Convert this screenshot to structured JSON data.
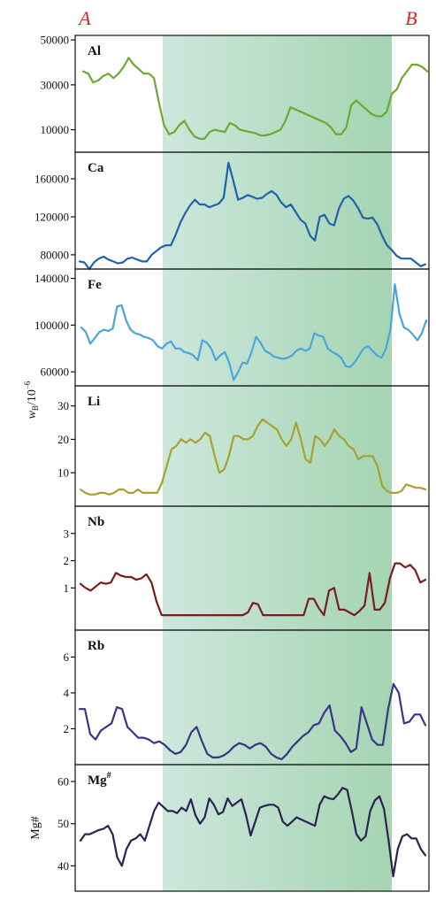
{
  "corner_labels": {
    "left": "A",
    "right": "B"
  },
  "y_axis_title": {
    "main": "w",
    "sub": "B",
    "rest": "/10",
    "sup": "−6"
  },
  "shade_gradient": {
    "start": "#cde7dc",
    "end": "#a4d4b2"
  },
  "chart_data": [
    {
      "type": "line",
      "label": "Al",
      "label_sup": "",
      "color": "#6aaa2e",
      "ylim": [
        0,
        52000
      ],
      "yticks": [
        10000,
        30000,
        50000
      ],
      "ytick_labels": [
        "10000",
        "30000",
        "50000"
      ],
      "ylabel": "",
      "values": [
        36000,
        35000,
        31000,
        32000,
        34000,
        35000,
        33000,
        35000,
        38000,
        42000,
        39000,
        37000,
        35000,
        35000,
        33000,
        22000,
        12000,
        8000,
        9000,
        12000,
        14000,
        10000,
        7000,
        6000,
        6000,
        9000,
        10000,
        9500,
        9000,
        13000,
        12000,
        10000,
        9500,
        9000,
        8500,
        7500,
        7500,
        8000,
        9000,
        10000,
        14000,
        20000,
        19000,
        18000,
        17000,
        16000,
        15000,
        14000,
        13000,
        11000,
        8000,
        8000,
        11000,
        21000,
        23000,
        21000,
        19000,
        17000,
        16000,
        16000,
        18000,
        26000,
        28000,
        33000,
        36000,
        39000,
        39000,
        38000,
        36000
      ]
    },
    {
      "type": "line",
      "label": "Ca",
      "label_sup": "",
      "color": "#1e63ab",
      "ylim": [
        65000,
        188000
      ],
      "yticks": [
        80000,
        120000,
        160000
      ],
      "ytick_labels": [
        "80000",
        "120000",
        "160000"
      ],
      "ylabel": "",
      "values": [
        73000,
        72000,
        65000,
        72000,
        76000,
        78000,
        75000,
        73000,
        71000,
        72000,
        76000,
        77000,
        75000,
        73000,
        73000,
        80000,
        84000,
        88000,
        90000,
        90000,
        101000,
        114000,
        124000,
        132000,
        138000,
        133000,
        133000,
        130000,
        132000,
        134000,
        140000,
        177000,
        158000,
        138000,
        140000,
        143000,
        141000,
        139000,
        140000,
        144000,
        147000,
        143000,
        135000,
        130000,
        133000,
        125000,
        117000,
        113000,
        100000,
        95000,
        120000,
        122000,
        113000,
        111000,
        129000,
        139000,
        142000,
        137000,
        129000,
        119000,
        118000,
        119000,
        112000,
        100000,
        90000,
        85000,
        79000,
        76000,
        76000,
        76000,
        72000,
        68000,
        70000
      ]
    },
    {
      "type": "line",
      "label": "Fe",
      "label_sup": "",
      "color": "#4aa5dc",
      "ylim": [
        48000,
        148000
      ],
      "yticks": [
        60000,
        100000,
        140000
      ],
      "ytick_labels": [
        "60000",
        "100000",
        "140000"
      ],
      "ylabel": "",
      "values": [
        98000,
        94000,
        84000,
        89000,
        94000,
        96000,
        95000,
        97000,
        116000,
        117000,
        104000,
        96000,
        93000,
        92000,
        90000,
        89000,
        87000,
        82000,
        80000,
        84000,
        86000,
        80000,
        80000,
        77000,
        76000,
        74000,
        70000,
        87000,
        85000,
        80000,
        70000,
        74000,
        77000,
        68000,
        53000,
        60000,
        68000,
        67000,
        77000,
        90000,
        85000,
        78000,
        76000,
        73000,
        72000,
        71000,
        72000,
        74000,
        78000,
        80000,
        78000,
        80000,
        93000,
        91000,
        90000,
        80000,
        77000,
        75000,
        72000,
        65000,
        64000,
        68000,
        74000,
        80000,
        82000,
        78000,
        74000,
        72000,
        80000,
        96000,
        135000,
        110000,
        98000,
        96000,
        92000,
        87000,
        93000,
        104000
      ]
    },
    {
      "type": "line",
      "label": "Li",
      "label_sup": "",
      "color": "#a9a12e",
      "ylim": [
        0,
        36
      ],
      "yticks": [
        10,
        20,
        30
      ],
      "ytick_labels": [
        "10",
        "20",
        "30"
      ],
      "ylabel": "",
      "values": [
        5,
        4,
        3.5,
        3.5,
        4,
        4,
        3.5,
        4,
        5,
        5,
        4,
        4,
        5,
        4,
        4,
        4,
        4,
        7,
        12,
        17,
        18,
        20,
        19,
        20,
        19,
        20,
        22,
        21,
        15,
        10,
        11,
        15,
        21,
        21,
        20,
        20,
        21,
        24,
        26,
        25,
        24,
        23,
        20,
        18,
        20,
        25,
        20,
        14,
        13,
        21,
        20,
        18,
        20,
        23,
        21,
        20,
        18,
        17,
        14,
        15,
        15,
        15,
        12,
        6,
        4.5,
        4,
        4,
        4.5,
        6.5,
        6,
        5.5,
        5.5,
        5
      ]
    },
    {
      "type": "line",
      "label": "Nb",
      "label_sup": "",
      "color": "#7a1d1d",
      "ylim": [
        -0.55,
        4
      ],
      "yticks": [
        1,
        2,
        3
      ],
      "ytick_labels": [
        "1",
        "2",
        "3"
      ],
      "ylabel": "",
      "values": [
        1.15,
        1,
        0.9,
        1.05,
        1.2,
        1.15,
        1.2,
        1.55,
        1.45,
        1.4,
        1.4,
        1.3,
        1.35,
        1.5,
        1.2,
        0.5,
        0,
        0,
        0,
        0,
        0,
        0,
        0,
        0,
        0,
        0,
        0,
        0,
        0,
        0,
        0,
        0,
        0,
        0.1,
        0.45,
        0.4,
        0,
        0,
        0,
        0,
        0,
        0,
        0,
        0,
        0,
        0.6,
        0.6,
        0.25,
        0,
        0.9,
        1,
        0.2,
        0.2,
        0.1,
        0,
        0.15,
        0.35,
        1.55,
        0.2,
        0.2,
        0.45,
        1.35,
        1.9,
        1.9,
        1.75,
        1.85,
        1.65,
        1.2,
        1.3
      ]
    },
    {
      "type": "line",
      "label": "Rb",
      "label_sup": "",
      "color": "#3b3585",
      "ylim": [
        0,
        7.5
      ],
      "yticks": [
        2,
        4,
        6
      ],
      "ytick_labels": [
        "2",
        "4",
        "6"
      ],
      "ylabel": "",
      "values": [
        3.1,
        3.1,
        1.7,
        1.4,
        1.9,
        2.1,
        2.3,
        3.2,
        3.1,
        2.1,
        1.8,
        1.5,
        1.5,
        1.4,
        1.2,
        1.3,
        1.1,
        0.8,
        0.6,
        0.7,
        1.1,
        1.8,
        2.1,
        1.3,
        0.6,
        0.4,
        0.4,
        0.5,
        0.7,
        1.0,
        1.2,
        1.1,
        0.9,
        1.1,
        1.2,
        1.0,
        0.6,
        0.4,
        0.3,
        0.6,
        1.0,
        1.3,
        1.6,
        1.8,
        2.2,
        2.3,
        2.9,
        3.3,
        1.9,
        1.6,
        1.2,
        0.7,
        0.9,
        3.2,
        2.3,
        1.4,
        1.1,
        1.1,
        3.1,
        4.5,
        4.0,
        2.3,
        2.4,
        2.8,
        2.8,
        2.2
      ]
    },
    {
      "type": "line",
      "label": "Mg",
      "label_sup": "#",
      "color": "#2b2350",
      "ylim": [
        34,
        64
      ],
      "yticks": [
        40,
        50,
        60
      ],
      "ytick_labels": [
        "40",
        "50",
        "60"
      ],
      "ylabel": "Mg#",
      "values": [
        46,
        47.5,
        47.5,
        48,
        48.5,
        48.8,
        49.5,
        47.5,
        42,
        40,
        44,
        46,
        46.5,
        47.5,
        46,
        49.5,
        53,
        55,
        54,
        53,
        53,
        52.5,
        53.8,
        53,
        55.8,
        52,
        50,
        51.5,
        56,
        54.5,
        52.2,
        52.8,
        56,
        54.2,
        55,
        55.8,
        52,
        47.2,
        50.5,
        53.8,
        54.2,
        54.5,
        54.5,
        53.8,
        50.5,
        49.5,
        50.5,
        51.5,
        51,
        50.5,
        50,
        49.5,
        54.5,
        56.5,
        56,
        55.8,
        57,
        58.5,
        58,
        53,
        47.5,
        46,
        47,
        53,
        55.5,
        56.5,
        53.5,
        46,
        37.5,
        44,
        47,
        47.5,
        46.5,
        46.5,
        44,
        42.5
      ]
    }
  ]
}
